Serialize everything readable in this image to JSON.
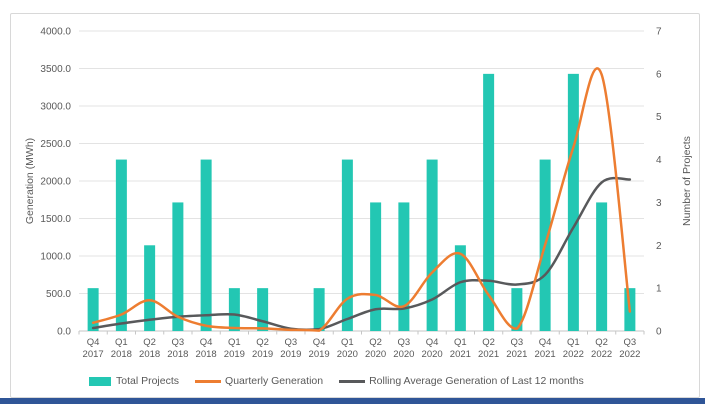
{
  "chart_data": {
    "type": "combo",
    "categories": [
      "Q4 2017",
      "Q1 2018",
      "Q2 2018",
      "Q3 2018",
      "Q4 2018",
      "Q1 2019",
      "Q2 2019",
      "Q3 2019",
      "Q4 2019",
      "Q1 2020",
      "Q2 2020",
      "Q3 2020",
      "Q4 2020",
      "Q1 2021",
      "Q2 2021",
      "Q3 2021",
      "Q4 2021",
      "Q1 2022",
      "Q2 2022",
      "Q3 2022"
    ],
    "series": [
      {
        "name": "Total Projects",
        "type": "bar",
        "axis": "right",
        "color": "#23c7b3",
        "values": [
          1,
          4,
          2,
          3,
          4,
          1,
          1,
          0,
          1,
          4,
          3,
          3,
          4,
          2,
          6,
          1,
          4,
          6,
          3,
          1
        ]
      },
      {
        "name": "Quarterly Generation",
        "type": "line",
        "axis": "left",
        "color": "#ed7d31",
        "values": [
          110,
          220,
          410,
          190,
          70,
          40,
          35,
          15,
          5,
          430,
          480,
          330,
          780,
          1030,
          480,
          30,
          1150,
          2450,
          3420,
          260
        ]
      },
      {
        "name": "Rolling Average Generation of Last 12 months",
        "type": "line",
        "axis": "left",
        "color": "#58595b",
        "values": [
          40,
          100,
          150,
          190,
          210,
          220,
          130,
          30,
          25,
          160,
          290,
          300,
          420,
          650,
          670,
          620,
          750,
          1380,
          1980,
          2020
        ]
      }
    ],
    "ylabel_left": "Generation (MWh)",
    "ylabel_right": "Number of Projects",
    "left_ylim": [
      0,
      4000
    ],
    "right_ylim": [
      0,
      7
    ],
    "left_ticks": [
      0,
      500,
      1000,
      1500,
      2000,
      2500,
      3000,
      3500,
      4000
    ],
    "right_ticks": [
      0,
      1,
      2,
      3,
      4,
      5,
      6,
      7
    ],
    "grid": true,
    "legend_position": "bottom",
    "smooth_lines": true
  },
  "colors": {
    "bar": "#23c7b3",
    "quarterly_line": "#ed7d31",
    "rolling_line": "#58595b",
    "text": "#595959",
    "gridline": "#e3e3e3",
    "axis_line": "#c6c6c6",
    "card_border": "#d8d8d8",
    "bottom_bar": "#2f5597"
  }
}
